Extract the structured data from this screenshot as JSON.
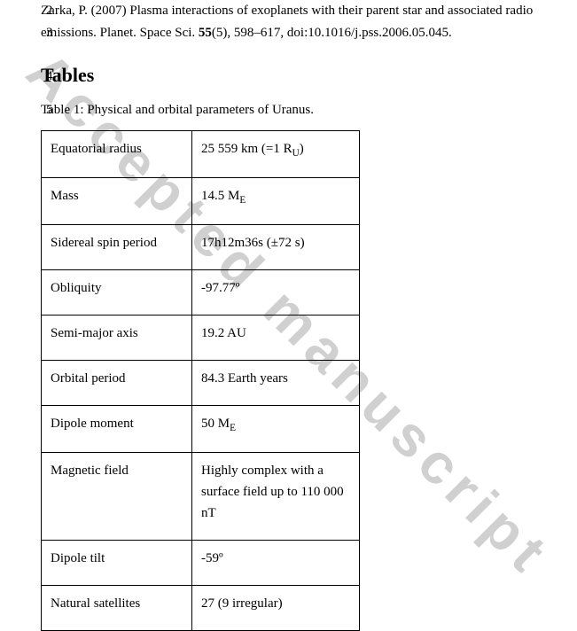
{
  "watermark": "Accepted manuscript",
  "lineNumbers": {
    "ref1": "2",
    "ref2": "3",
    "heading": "4",
    "caption": "5"
  },
  "reference": {
    "line1_pre": "Zarka, P. (2007) Plasma interactions of exoplanets with their parent star and associated radio",
    "line2_pre": "emissions. Planet. Space Sci. ",
    "line2_vol": "55",
    "line2_post": "(5), 598–617, doi:10.1016/j.pss.2006.05.045."
  },
  "sectionHeading": "Tables",
  "tableCaption": "Table 1: Physical and orbital parameters of Uranus.",
  "rows": [
    {
      "label": "Equatorial radius",
      "valuePre": "25 559 km (=1 R",
      "valueSub": "U",
      "valuePost": ")"
    },
    {
      "label": "Mass",
      "valuePre": "14.5 M",
      "valueSub": "E",
      "valuePost": ""
    },
    {
      "label": "Sidereal spin period",
      "valuePre": "17h12m36s (±72 s)",
      "valueSub": "",
      "valuePost": ""
    },
    {
      "label": "Obliquity",
      "valuePre": "-97.77º",
      "valueSub": "",
      "valuePost": ""
    },
    {
      "label": "Semi-major axis",
      "valuePre": "19.2 AU",
      "valueSub": "",
      "valuePost": ""
    },
    {
      "label": "Orbital period",
      "valuePre": "84.3 Earth years",
      "valueSub": "",
      "valuePost": ""
    },
    {
      "label": "Dipole moment",
      "valuePre": "50 M",
      "valueSub": "E",
      "valuePost": ""
    },
    {
      "label": "Magnetic field",
      "valuePre": "Highly complex with a surface field up to 110 000 nT",
      "valueSub": "",
      "valuePost": ""
    },
    {
      "label": "Dipole tilt",
      "valuePre": "-59º",
      "valueSub": "",
      "valuePost": ""
    },
    {
      "label": "Natural satellites",
      "valuePre": "27 (9 irregular)",
      "valueSub": "",
      "valuePost": ""
    }
  ]
}
